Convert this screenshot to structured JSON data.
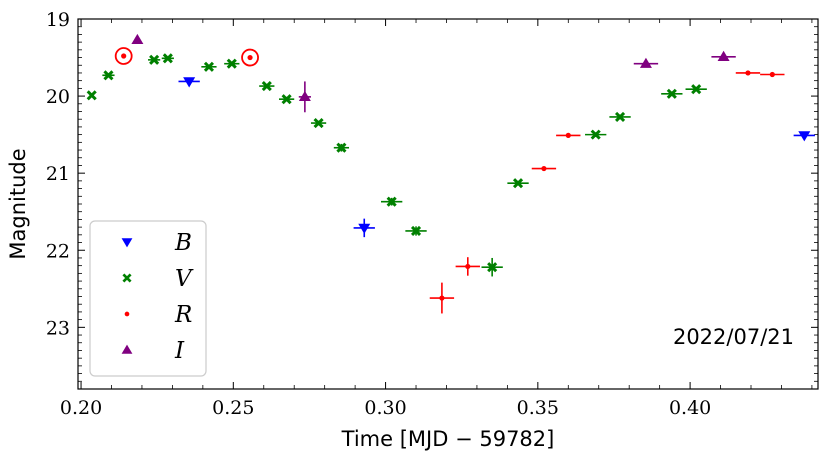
{
  "chart_data": {
    "type": "scatter",
    "title": "",
    "xlabel": "Time [MJD − 59782]",
    "ylabel": "Magnitude",
    "xlim": [
      0.199,
      0.442
    ],
    "ylim": [
      23.8,
      19.0
    ],
    "y_inverted": true,
    "xticks": [
      0.2,
      0.25,
      0.3,
      0.35,
      0.4
    ],
    "xtick_labels": [
      "0.20",
      "0.25",
      "0.30",
      "0.35",
      "0.40"
    ],
    "yticks": [
      19,
      20,
      21,
      22,
      23
    ],
    "ytick_labels": [
      "19",
      "20",
      "21",
      "22",
      "23"
    ],
    "grid": false,
    "legend_position": "bottom-left",
    "annotation": "2022/07/21",
    "series": [
      {
        "name": "B",
        "color": "#0000ff",
        "marker": "triangle-down",
        "points": [
          {
            "x": 0.2355,
            "y": 19.81,
            "xerr": 0.0035,
            "yerr": 0.04
          },
          {
            "x": 0.293,
            "y": 21.71,
            "xerr": 0.0035,
            "yerr": 0.12
          },
          {
            "x": 0.4375,
            "y": 20.51,
            "xerr": 0.0035,
            "yerr": 0.04
          }
        ]
      },
      {
        "name": "V",
        "color": "#008000",
        "marker": "x",
        "points": [
          {
            "x": 0.2035,
            "y": 19.99,
            "xerr": 0.0,
            "yerr": 0.0
          },
          {
            "x": 0.209,
            "y": 19.73,
            "xerr": 0.002,
            "yerr": 0.02
          },
          {
            "x": 0.224,
            "y": 19.53,
            "xerr": 0.002,
            "yerr": 0.02
          },
          {
            "x": 0.2285,
            "y": 19.51,
            "xerr": 0.002,
            "yerr": 0.02
          },
          {
            "x": 0.242,
            "y": 19.62,
            "xerr": 0.0025,
            "yerr": 0.02
          },
          {
            "x": 0.2495,
            "y": 19.58,
            "xerr": 0.0025,
            "yerr": 0.02
          },
          {
            "x": 0.261,
            "y": 19.87,
            "xerr": 0.0025,
            "yerr": 0.02
          },
          {
            "x": 0.2675,
            "y": 20.04,
            "xerr": 0.0025,
            "yerr": 0.03
          },
          {
            "x": 0.278,
            "y": 20.35,
            "xerr": 0.0025,
            "yerr": 0.03
          },
          {
            "x": 0.2855,
            "y": 20.67,
            "xerr": 0.0025,
            "yerr": 0.05
          },
          {
            "x": 0.302,
            "y": 21.37,
            "xerr": 0.0035,
            "yerr": 0.05
          },
          {
            "x": 0.31,
            "y": 21.75,
            "xerr": 0.0035,
            "yerr": 0.06
          },
          {
            "x": 0.335,
            "y": 22.22,
            "xerr": 0.0035,
            "yerr": 0.12
          },
          {
            "x": 0.3435,
            "y": 21.13,
            "xerr": 0.0035,
            "yerr": 0.03
          },
          {
            "x": 0.369,
            "y": 20.5,
            "xerr": 0.0035,
            "yerr": 0.03
          },
          {
            "x": 0.377,
            "y": 20.27,
            "xerr": 0.0035,
            "yerr": 0.03
          },
          {
            "x": 0.394,
            "y": 19.97,
            "xerr": 0.0035,
            "yerr": 0.03
          },
          {
            "x": 0.402,
            "y": 19.91,
            "xerr": 0.0035,
            "yerr": 0.03
          }
        ]
      },
      {
        "name": "R",
        "color": "#ff0000",
        "marker": "point",
        "points": [
          {
            "x": 0.214,
            "y": 19.48,
            "xerr": 0.0,
            "yerr": 0.0,
            "circled": true
          },
          {
            "x": 0.2555,
            "y": 19.5,
            "xerr": 0.0,
            "yerr": 0.0,
            "circled": true
          },
          {
            "x": 0.3185,
            "y": 22.62,
            "xerr": 0.004,
            "yerr": 0.2
          },
          {
            "x": 0.327,
            "y": 22.21,
            "xerr": 0.004,
            "yerr": 0.12
          },
          {
            "x": 0.352,
            "y": 20.94,
            "xerr": 0.004,
            "yerr": 0.02
          },
          {
            "x": 0.36,
            "y": 20.51,
            "xerr": 0.004,
            "yerr": 0.02
          },
          {
            "x": 0.419,
            "y": 19.7,
            "xerr": 0.004,
            "yerr": 0.02
          },
          {
            "x": 0.427,
            "y": 19.72,
            "xerr": 0.004,
            "yerr": 0.02
          }
        ]
      },
      {
        "name": "I",
        "color": "#800080",
        "marker": "triangle-up",
        "points": [
          {
            "x": 0.2185,
            "y": 19.27,
            "xerr": 0.0,
            "yerr": 0.0
          },
          {
            "x": 0.2735,
            "y": 20.01,
            "xerr": 0.002,
            "yerr": 0.2
          },
          {
            "x": 0.3855,
            "y": 19.58,
            "xerr": 0.004,
            "yerr": 0.03
          },
          {
            "x": 0.411,
            "y": 19.49,
            "xerr": 0.004,
            "yerr": 0.03
          }
        ]
      }
    ]
  }
}
